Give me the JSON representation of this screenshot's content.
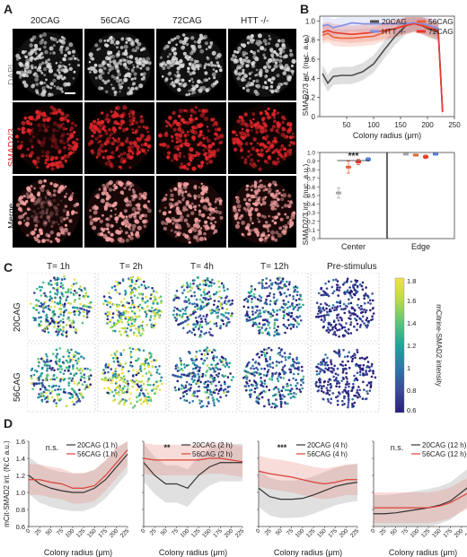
{
  "panels": {
    "A": "A",
    "B": "B",
    "C": "C",
    "D": "D"
  },
  "panel_a": {
    "columns": [
      "20CAG",
      "56CAG",
      "72CAG",
      "HTT -/-"
    ],
    "rows": [
      "DAPI",
      "SMAD2/3",
      "Merge"
    ],
    "colors": {
      "dapi": "#d9d9d9",
      "smad": "#e0262b",
      "merge": "#f2a0a0",
      "row_smad_label": "#d9252a"
    }
  },
  "panel_c": {
    "columns": [
      "T= 1h",
      "T= 2h",
      "T= 4h",
      "T= 12h",
      "Pre-stimulus"
    ],
    "rows": [
      "20CAG",
      "56CAG"
    ],
    "colorbar": {
      "label": "mCitrine-SMAD2 intensity",
      "ticks": [
        "1.8",
        "1.6",
        "1.4",
        "1.2",
        "1",
        "0.8",
        "0.6"
      ],
      "min": 0.6,
      "max": 1.8
    }
  },
  "chart_data": [
    {
      "type": "line",
      "xlabel": "Colony radius (μm)",
      "ylabel": "SMAD2/3 int. (nuc. a.u.)",
      "xlim": [
        0,
        250
      ],
      "ylim": [
        0,
        1.05
      ],
      "xticks": [
        "50",
        "100",
        "150",
        "200",
        "250"
      ],
      "yticks": [
        "0",
        "0.2",
        "0.4",
        "0.6",
        "0.8",
        "1.0"
      ],
      "x": [
        5,
        15,
        25,
        40,
        60,
        80,
        100,
        120,
        140,
        160,
        175,
        190,
        200,
        210,
        220,
        228
      ],
      "series": [
        {
          "name": "20CAG",
          "color": "#4d4d4d",
          "values": [
            0.45,
            0.35,
            0.42,
            0.43,
            0.43,
            0.47,
            0.55,
            0.7,
            0.84,
            0.95,
            0.98,
            0.95,
            0.92,
            0.9,
            0.88,
            0.05
          ]
        },
        {
          "name": "56CAG",
          "color": "#e8623a",
          "values": [
            0.85,
            0.87,
            0.83,
            0.82,
            0.82,
            0.83,
            0.84,
            0.88,
            0.92,
            0.96,
            0.98,
            0.96,
            0.94,
            0.92,
            0.9,
            0.05
          ]
        },
        {
          "name": "HTT -/-",
          "color": "#7f8ee0",
          "values": [
            0.95,
            0.96,
            0.93,
            0.95,
            0.98,
            0.97,
            0.97,
            0.97,
            0.97,
            0.97,
            0.98,
            0.97,
            0.96,
            0.94,
            0.92,
            0.05
          ]
        },
        {
          "name": "72CAG",
          "color": "#e83a2a",
          "values": [
            0.88,
            0.9,
            0.88,
            0.87,
            0.86,
            0.87,
            0.88,
            0.9,
            0.92,
            0.95,
            0.97,
            0.95,
            0.93,
            0.91,
            0.89,
            0.05
          ]
        }
      ]
    },
    {
      "type": "scatter",
      "ylabel": "SMAD2/3 int. (nuc. a.u.)",
      "categories": [
        "Center",
        "Edge"
      ],
      "ylim": [
        0,
        1.0
      ],
      "yticks": [
        "0",
        "0.1",
        "0.2",
        "0.3",
        "0.4",
        "0.5",
        "0.6",
        "0.7",
        "0.8",
        "0.9",
        "1.0"
      ],
      "annotation": "***",
      "series": [
        {
          "color": "#a8a8a8",
          "values": [
            0.53,
            0.98
          ],
          "errors": [
            0.06,
            0.01
          ]
        },
        {
          "color": "#e8623a",
          "values": [
            0.83,
            0.97
          ],
          "errors": [
            0.07,
            0.01
          ]
        },
        {
          "color": "#e83a2a",
          "values": [
            0.89,
            0.95
          ],
          "errors": [
            0.03,
            0.02
          ]
        },
        {
          "color": "#5b7fd6",
          "values": [
            0.92,
            0.98
          ],
          "errors": [
            0.02,
            0.01
          ]
        }
      ]
    },
    {
      "type": "line",
      "xlabel": "Colony radius (μm)",
      "ylabel": "mCit-SMAD2 int. (N:C a.u.)",
      "xlim": [
        0,
        225
      ],
      "ylim": [
        0.6,
        1.6
      ],
      "xticks": [
        "0",
        "25",
        "50",
        "75",
        "100",
        "125",
        "150",
        "175",
        "200",
        "225"
      ],
      "yticks": [
        "0.6",
        "0.8",
        "1.0",
        "1.2",
        "1.4",
        "1.6"
      ],
      "annotation": "n.s.",
      "x": [
        0,
        25,
        50,
        75,
        100,
        125,
        150,
        175,
        200,
        225
      ],
      "series": [
        {
          "name": "20CAG (1 h)",
          "color": "#333333",
          "values": [
            1.2,
            1.1,
            1.05,
            1.02,
            1.0,
            1.0,
            1.05,
            1.15,
            1.3,
            1.45
          ]
        },
        {
          "name": "56CAG (1 h)",
          "color": "#d9423a",
          "values": [
            1.15,
            1.15,
            1.12,
            1.1,
            1.05,
            1.05,
            1.08,
            1.2,
            1.35,
            1.5
          ]
        }
      ]
    },
    {
      "type": "line",
      "xlabel": "Colony radius (μm)",
      "xlim": [
        0,
        225
      ],
      "ylim": [
        0.6,
        1.6
      ],
      "xticks": [
        "0",
        "25",
        "50",
        "75",
        "100",
        "125",
        "150",
        "175",
        "200",
        "225"
      ],
      "annotation": "**",
      "x": [
        0,
        25,
        50,
        75,
        100,
        125,
        150,
        175,
        200,
        225
      ],
      "series": [
        {
          "name": "20CAG (2 h)",
          "color": "#333333",
          "values": [
            1.35,
            1.2,
            1.1,
            1.1,
            1.05,
            1.2,
            1.3,
            1.35,
            1.35,
            1.35
          ]
        },
        {
          "name": "56CAG (2 h)",
          "color": "#d9423a",
          "values": [
            1.4,
            1.38,
            1.38,
            1.38,
            1.38,
            1.38,
            1.4,
            1.4,
            1.38,
            1.36
          ]
        }
      ]
    },
    {
      "type": "line",
      "xlabel": "Colony radius (μm)",
      "xlim": [
        0,
        225
      ],
      "ylim": [
        0.6,
        1.6
      ],
      "xticks": [
        "0",
        "25",
        "50",
        "75",
        "100",
        "125",
        "150",
        "175",
        "200",
        "225"
      ],
      "annotation": "***",
      "x": [
        0,
        25,
        50,
        75,
        100,
        125,
        150,
        175,
        200,
        225
      ],
      "series": [
        {
          "name": "20CAG (4 h)",
          "color": "#333333",
          "values": [
            1.05,
            0.95,
            0.92,
            0.92,
            0.93,
            0.97,
            1.02,
            1.07,
            1.1,
            1.12
          ]
        },
        {
          "name": "56CAG (4 h)",
          "color": "#d9423a",
          "values": [
            1.25,
            1.22,
            1.2,
            1.18,
            1.15,
            1.12,
            1.1,
            1.12,
            1.15,
            1.15
          ]
        }
      ]
    },
    {
      "type": "line",
      "xlabel": "Colony radius (μm)",
      "xlim": [
        0,
        225
      ],
      "ylim": [
        0.6,
        1.6
      ],
      "xticks": [
        "0",
        "25",
        "50",
        "75",
        "100",
        "125",
        "150",
        "175",
        "200",
        "225"
      ],
      "annotation": "n.s.",
      "x": [
        0,
        25,
        50,
        75,
        100,
        125,
        150,
        175,
        200,
        225
      ],
      "series": [
        {
          "name": "20CAG (12 h)",
          "color": "#333333",
          "values": [
            0.75,
            0.75,
            0.76,
            0.78,
            0.8,
            0.82,
            0.85,
            0.9,
            1.0,
            1.1
          ]
        },
        {
          "name": "56CAG (12 h)",
          "color": "#d9423a",
          "values": [
            0.82,
            0.82,
            0.82,
            0.82,
            0.82,
            0.82,
            0.84,
            0.88,
            0.95,
            1.02
          ]
        }
      ]
    }
  ]
}
